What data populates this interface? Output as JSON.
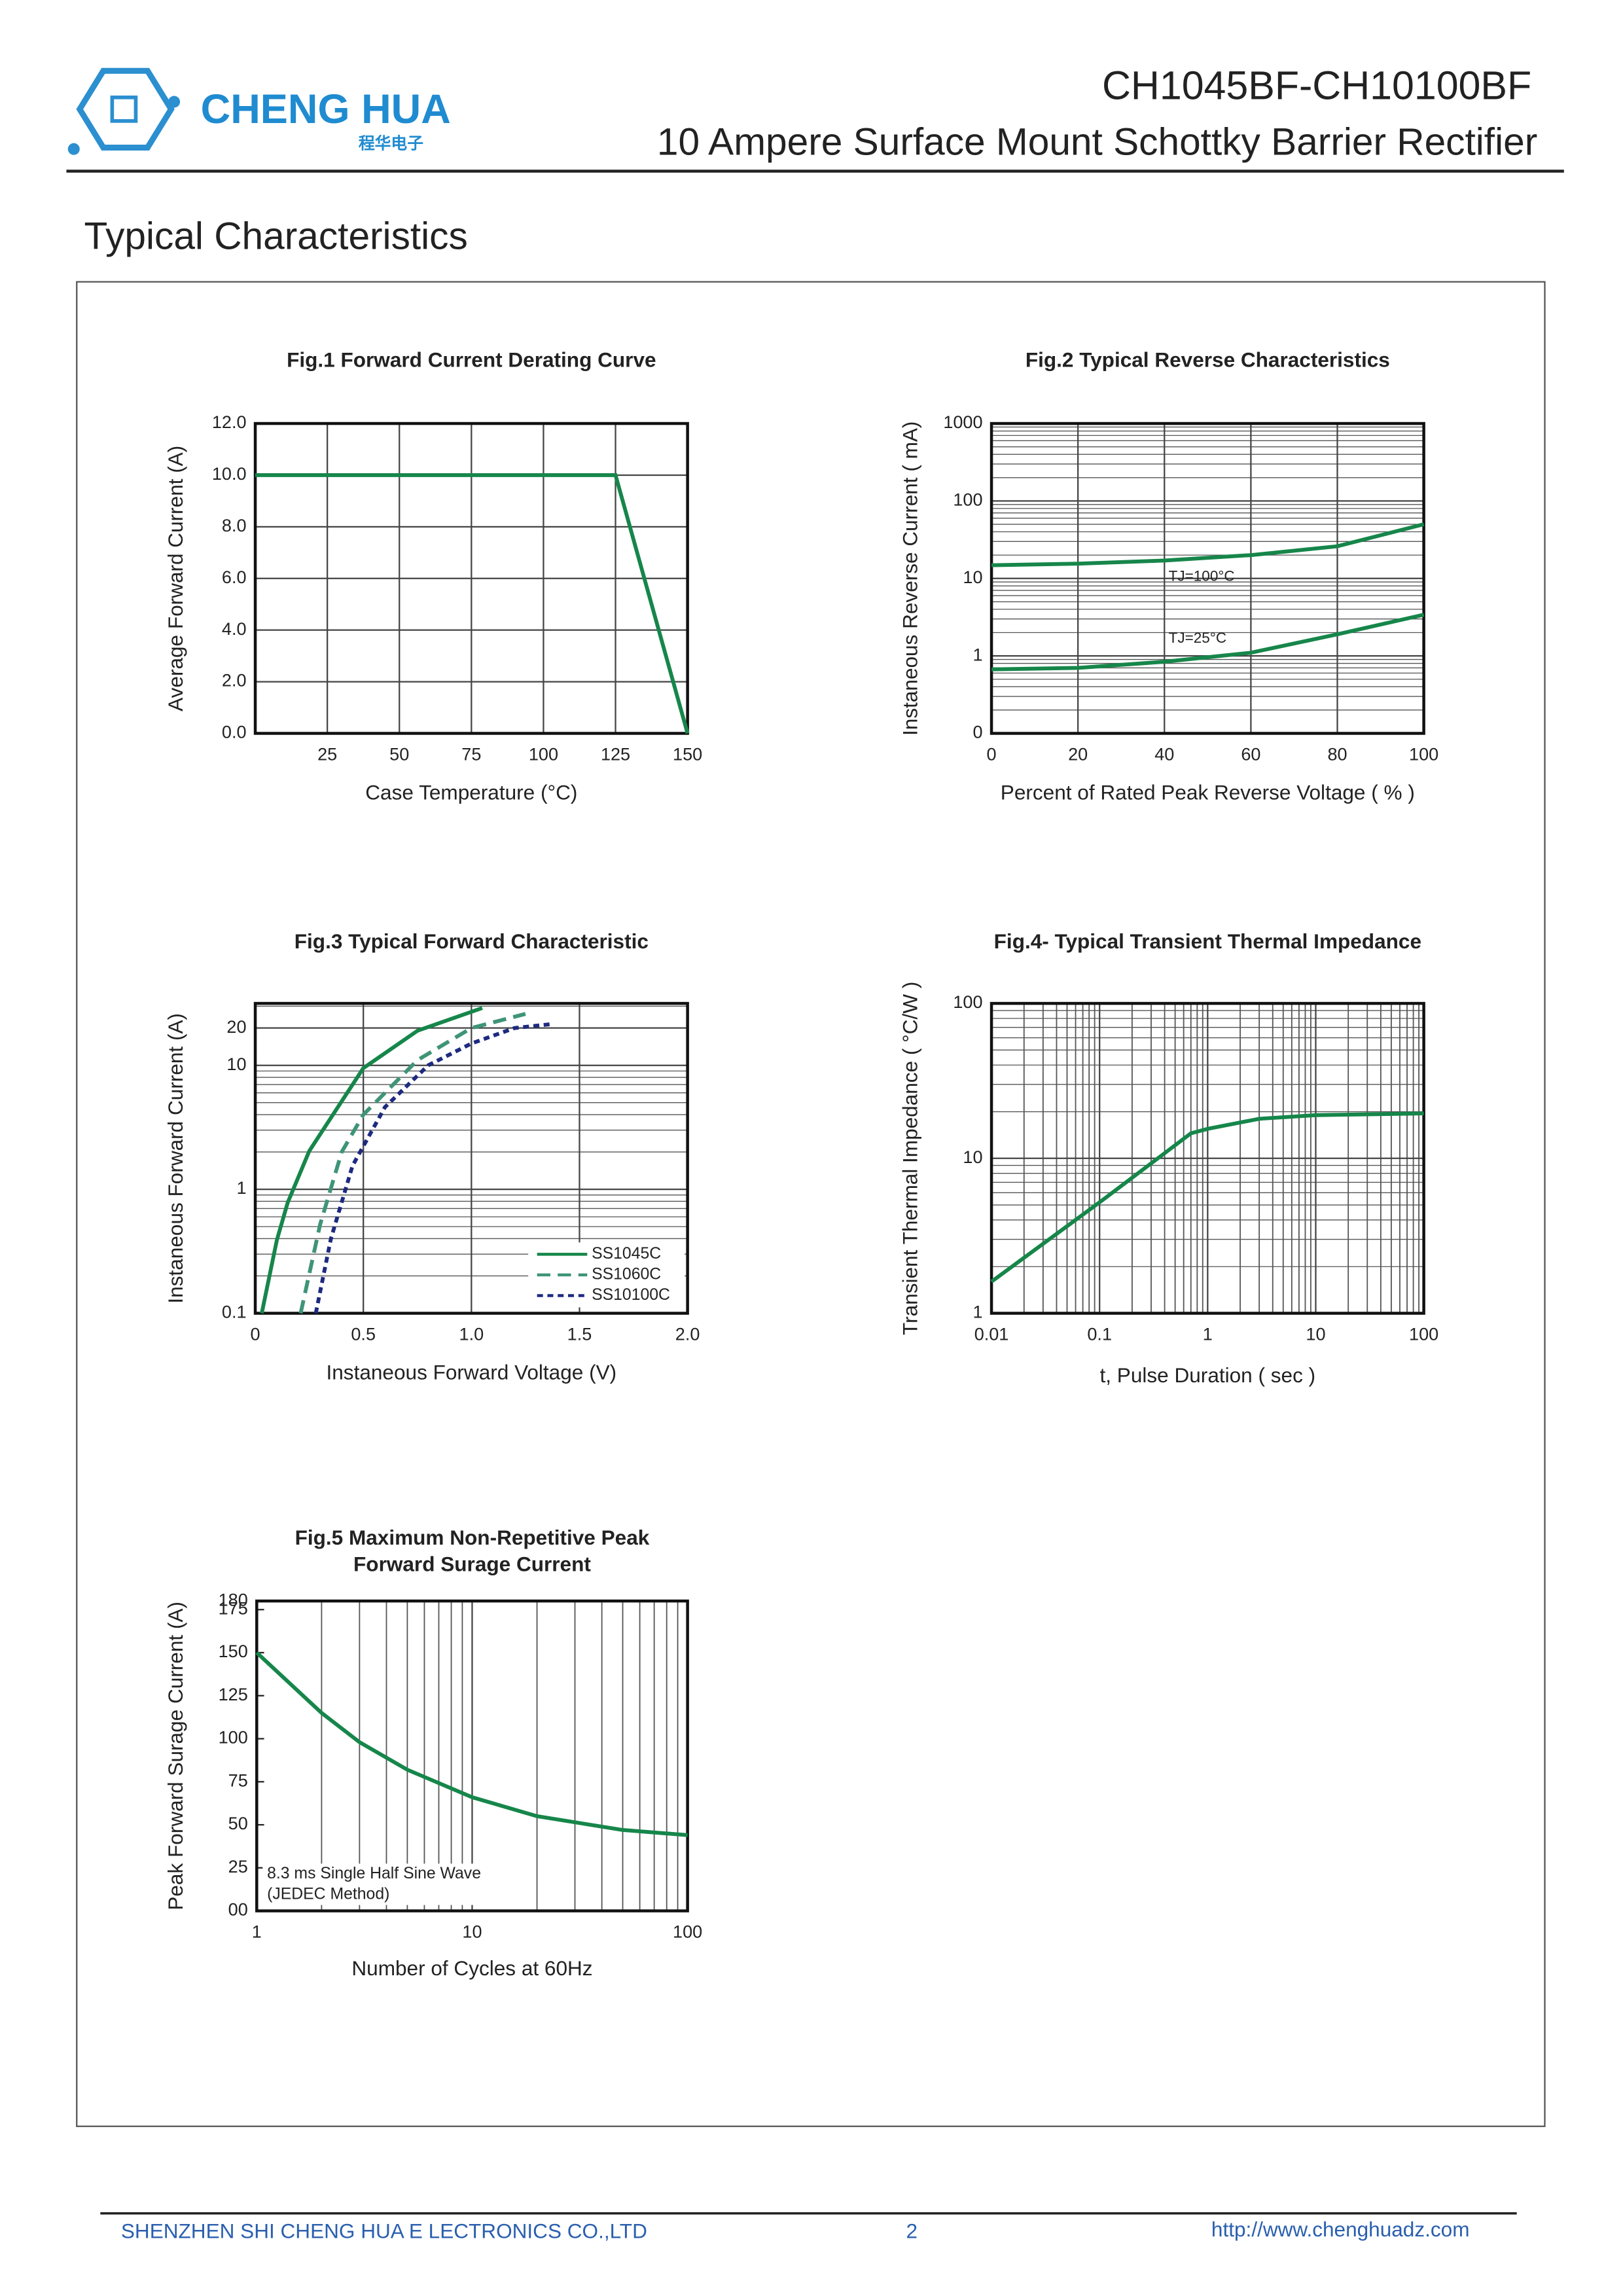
{
  "header": {
    "brand": "CHENG HUA",
    "brand_cn": "程华电子",
    "part": "CH1045BF-CH10100BF",
    "description": "10 Ampere Surface Mount Schottky Barrier Rectifier"
  },
  "section_title": "Typical Characteristics",
  "chart_data": [
    {
      "type": "line",
      "title": "Fig.1  Forward Current Derating Curve",
      "xlabel": "Case Temperature (°C)",
      "ylabel": "Average Forward Current (A)",
      "xlim": [
        0,
        150
      ],
      "ylim": [
        0,
        12
      ],
      "xticks": [
        25,
        50,
        75,
        100,
        125,
        150
      ],
      "yticks": [
        {
          "value": 0,
          "label": "0.0"
        },
        {
          "value": 2,
          "label": "2.0"
        },
        {
          "value": 4,
          "label": "4.0"
        },
        {
          "value": 6,
          "label": "6.0"
        },
        {
          "value": 8,
          "label": "8.0"
        },
        {
          "value": 10,
          "label": "10.0"
        },
        {
          "value": 12,
          "label": "12.0"
        }
      ],
      "grid": true,
      "series": [
        {
          "color": "#16864a",
          "x": [
            0,
            125,
            150
          ],
          "values": [
            10,
            10,
            0
          ]
        }
      ]
    },
    {
      "type": "line",
      "title": "Fig.2  Typical Reverse Characteristics",
      "xlabel": "Percent of Rated Peak Reverse Voltage ( % )",
      "ylabel": "Instaneous Reverse Current ( mA)",
      "xlim": [
        0,
        100
      ],
      "ylim": [
        0.1,
        1000
      ],
      "ylog": true,
      "xticks": [
        0,
        20,
        40,
        60,
        80,
        100
      ],
      "yticks": [
        {
          "value": 0.1,
          "label": "0"
        },
        1,
        10,
        100,
        1000
      ],
      "grid": true,
      "series": [
        {
          "name": "TJ=100°C",
          "color": "#16864a",
          "x": [
            0,
            20,
            40,
            60,
            80,
            100
          ],
          "values": [
            14.8,
            15.5,
            17,
            20,
            26,
            50
          ]
        },
        {
          "name": "TJ=25°C",
          "color": "#16864a",
          "x": [
            0,
            20,
            40,
            60,
            80,
            100
          ],
          "values": [
            0.67,
            0.7,
            0.84,
            1.1,
            1.9,
            3.4
          ]
        }
      ]
    },
    {
      "type": "line",
      "title": "Fig.3  Typical Forward Characteristic",
      "xlabel": "Instaneous Forward Voltage (V)",
      "ylabel": "Instaneous Forward Current  (A)",
      "xlim": [
        0,
        2
      ],
      "ylim": [
        0.1,
        31.6
      ],
      "ylog": true,
      "xticks": [
        0,
        0.5,
        {
          "value": 1,
          "label": "1.0"
        },
        1.5,
        {
          "value": 2,
          "label": "2.0"
        }
      ],
      "yticks": [
        0.1,
        1,
        10,
        20
      ],
      "grid": true,
      "legend": "lower right",
      "series": [
        {
          "name": "SS1045C",
          "color": "#16864a",
          "linestyle": "solid",
          "x": [
            0.03,
            0.1,
            0.15,
            0.25,
            0.5,
            0.75,
            1.05
          ],
          "values": [
            0.1,
            0.39,
            0.78,
            2.04,
            9.5,
            19,
            29
          ]
        },
        {
          "name": "SS1060C",
          "color": "#3f9477",
          "linestyle": "dashed",
          "x": [
            0.21,
            0.3,
            0.4,
            0.5,
            0.75,
            1.0,
            1.25
          ],
          "values": [
            0.1,
            0.52,
            2,
            4,
            11,
            20,
            26
          ]
        },
        {
          "name": "SS10100C",
          "color": "#1d2a80",
          "linestyle": "dotted",
          "x": [
            0.28,
            0.35,
            0.45,
            0.6,
            0.8,
            1.0,
            1.2,
            1.37
          ],
          "values": [
            0.1,
            0.4,
            1.55,
            4.6,
            10,
            15,
            20,
            21.5
          ]
        }
      ]
    },
    {
      "type": "line",
      "title": "Fig.4- Typical Transient Thermal Impedance",
      "xlabel": "t, Pulse Duration ( sec )",
      "ylabel": "Transient Thermal Impedance ( °C/W )",
      "xlim": [
        0.01,
        100
      ],
      "ylim": [
        1,
        100
      ],
      "xlog": true,
      "ylog": true,
      "xticks": [
        0.01,
        0.1,
        1,
        10,
        100
      ],
      "yticks": [
        1,
        10,
        100
      ],
      "grid": true,
      "series": [
        {
          "color": "#16864a",
          "x": [
            0.01,
            0.1,
            0.7,
            1,
            3,
            10,
            100
          ],
          "values": [
            1.6,
            5.2,
            14.5,
            15.5,
            18,
            19,
            19.5
          ]
        }
      ]
    },
    {
      "type": "line",
      "title": [
        "Fig.5  Maximum Non-Repetitive Peak",
        "Forward Surage Current"
      ],
      "xlabel": "Number of Cycles at 60Hz",
      "ylabel": "Peak Forward Surage Current (A)",
      "xlim": [
        1,
        100
      ],
      "ylim": [
        0,
        180
      ],
      "xlog": true,
      "xticks": [
        1,
        10,
        100
      ],
      "yticks": [
        {
          "value": 0,
          "label": "00"
        },
        25,
        50,
        75,
        100,
        125,
        150,
        175,
        180
      ],
      "grid": "x",
      "annotations": [
        "8.3 ms Single Half Sine Wave",
        "(JEDEC Method)"
      ],
      "series": [
        {
          "color": "#16864a",
          "x": [
            1,
            2,
            3,
            5,
            10,
            20,
            50,
            100
          ],
          "values": [
            150,
            115,
            98,
            82,
            66,
            55,
            47,
            44
          ]
        }
      ]
    }
  ],
  "footer": {
    "company": "SHENZHEN SHI CHENG HUA E LECTRONICS CO.,LTD",
    "page": "2",
    "url": "http://www.chenghuadz.com"
  }
}
